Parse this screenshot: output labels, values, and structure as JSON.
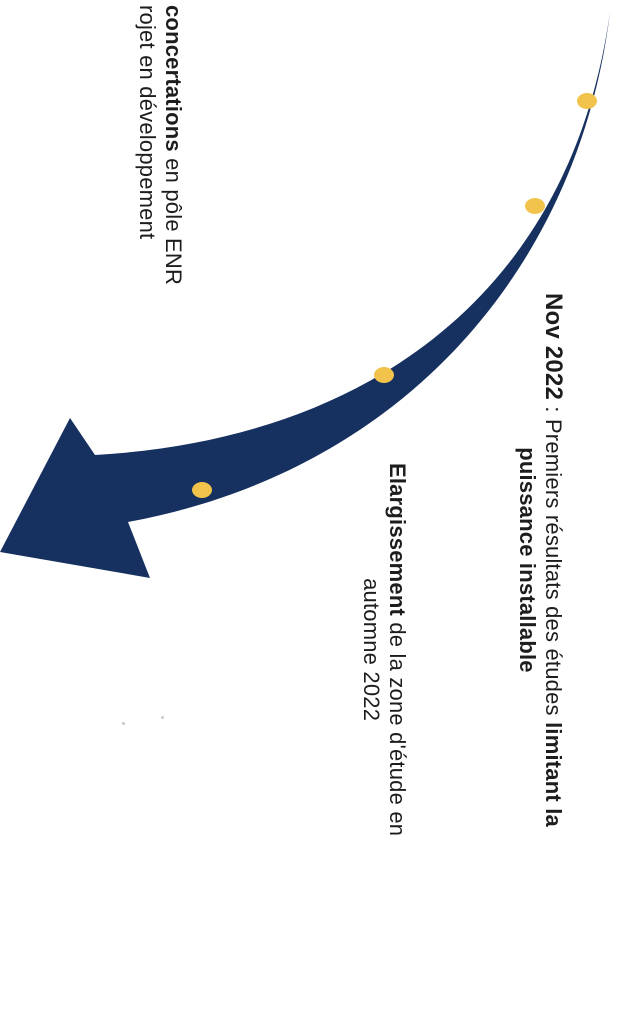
{
  "colors": {
    "arrow": "#16305f",
    "milestone_dot": "#f2c34a",
    "text": "#1d1d1f"
  },
  "milestones": [
    {
      "name": "milestone-dot-1"
    },
    {
      "name": "milestone-dot-2"
    },
    {
      "name": "milestone-dot-3"
    },
    {
      "name": "milestone-dot-4"
    }
  ],
  "left_block": {
    "line1_bold": "concertations",
    "line1_rest": " en pôle ENR",
    "line2": "rojet en développement"
  },
  "nov_block": {
    "line1_date": "Nov 2022",
    "line1_sep": " : ",
    "line1_text": "Premiers résultats des études ",
    "line1_bold": "limitant la",
    "line2_bold": "puissance installable"
  },
  "elarg_block": {
    "line1_bold": "Elargissement",
    "line1_rest": " de la zone d'étude en",
    "line2": "automne 2022"
  }
}
